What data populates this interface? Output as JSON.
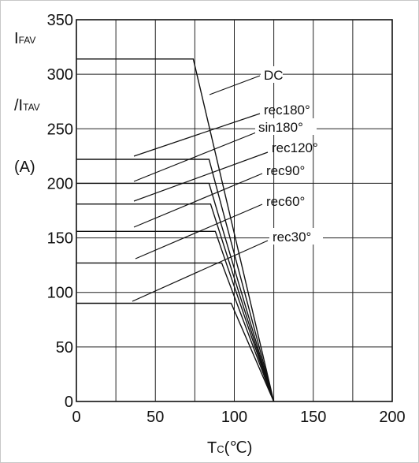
{
  "chart_data": {
    "type": "line",
    "title": "",
    "ylabel": {
      "line1_main": "I",
      "line1_sub": "FAV",
      "line2_prefix": "/I",
      "line2_sub": "TAV",
      "unit": "(A)"
    },
    "xlabel": {
      "main": "T",
      "sub": "C",
      "unit": "(℃)"
    },
    "xlim": [
      0,
      200
    ],
    "ylim": [
      0,
      350
    ],
    "x_ticks": [
      0,
      50,
      100,
      150,
      200
    ],
    "y_ticks": [
      0,
      50,
      100,
      150,
      200,
      250,
      300,
      350
    ],
    "grid": "on",
    "x_ticks_text": [
      "0",
      "50",
      "100",
      "150",
      "200"
    ],
    "y_ticks_text": [
      "0",
      "50",
      "100",
      "150",
      "200",
      "250",
      "300",
      "350"
    ],
    "series": [
      {
        "name": "DC",
        "x": [
          0,
          74,
          125
        ],
        "y": [
          314,
          314,
          0
        ]
      },
      {
        "name": "rec180°",
        "x": [
          0,
          84,
          125
        ],
        "y": [
          222,
          222,
          0
        ]
      },
      {
        "name": "sin180°",
        "x": [
          0,
          84,
          125
        ],
        "y": [
          200,
          200,
          0
        ]
      },
      {
        "name": "rec120°",
        "x": [
          0,
          85,
          125
        ],
        "y": [
          181,
          181,
          0
        ]
      },
      {
        "name": "rec90°",
        "x": [
          0,
          88,
          125
        ],
        "y": [
          156,
          156,
          0
        ]
      },
      {
        "name": "rec60°",
        "x": [
          0,
          92,
          125
        ],
        "y": [
          127,
          127,
          0
        ]
      },
      {
        "name": "rec30°",
        "x": [
          0,
          98,
          125
        ],
        "y": [
          90,
          90,
          0
        ]
      }
    ]
  }
}
